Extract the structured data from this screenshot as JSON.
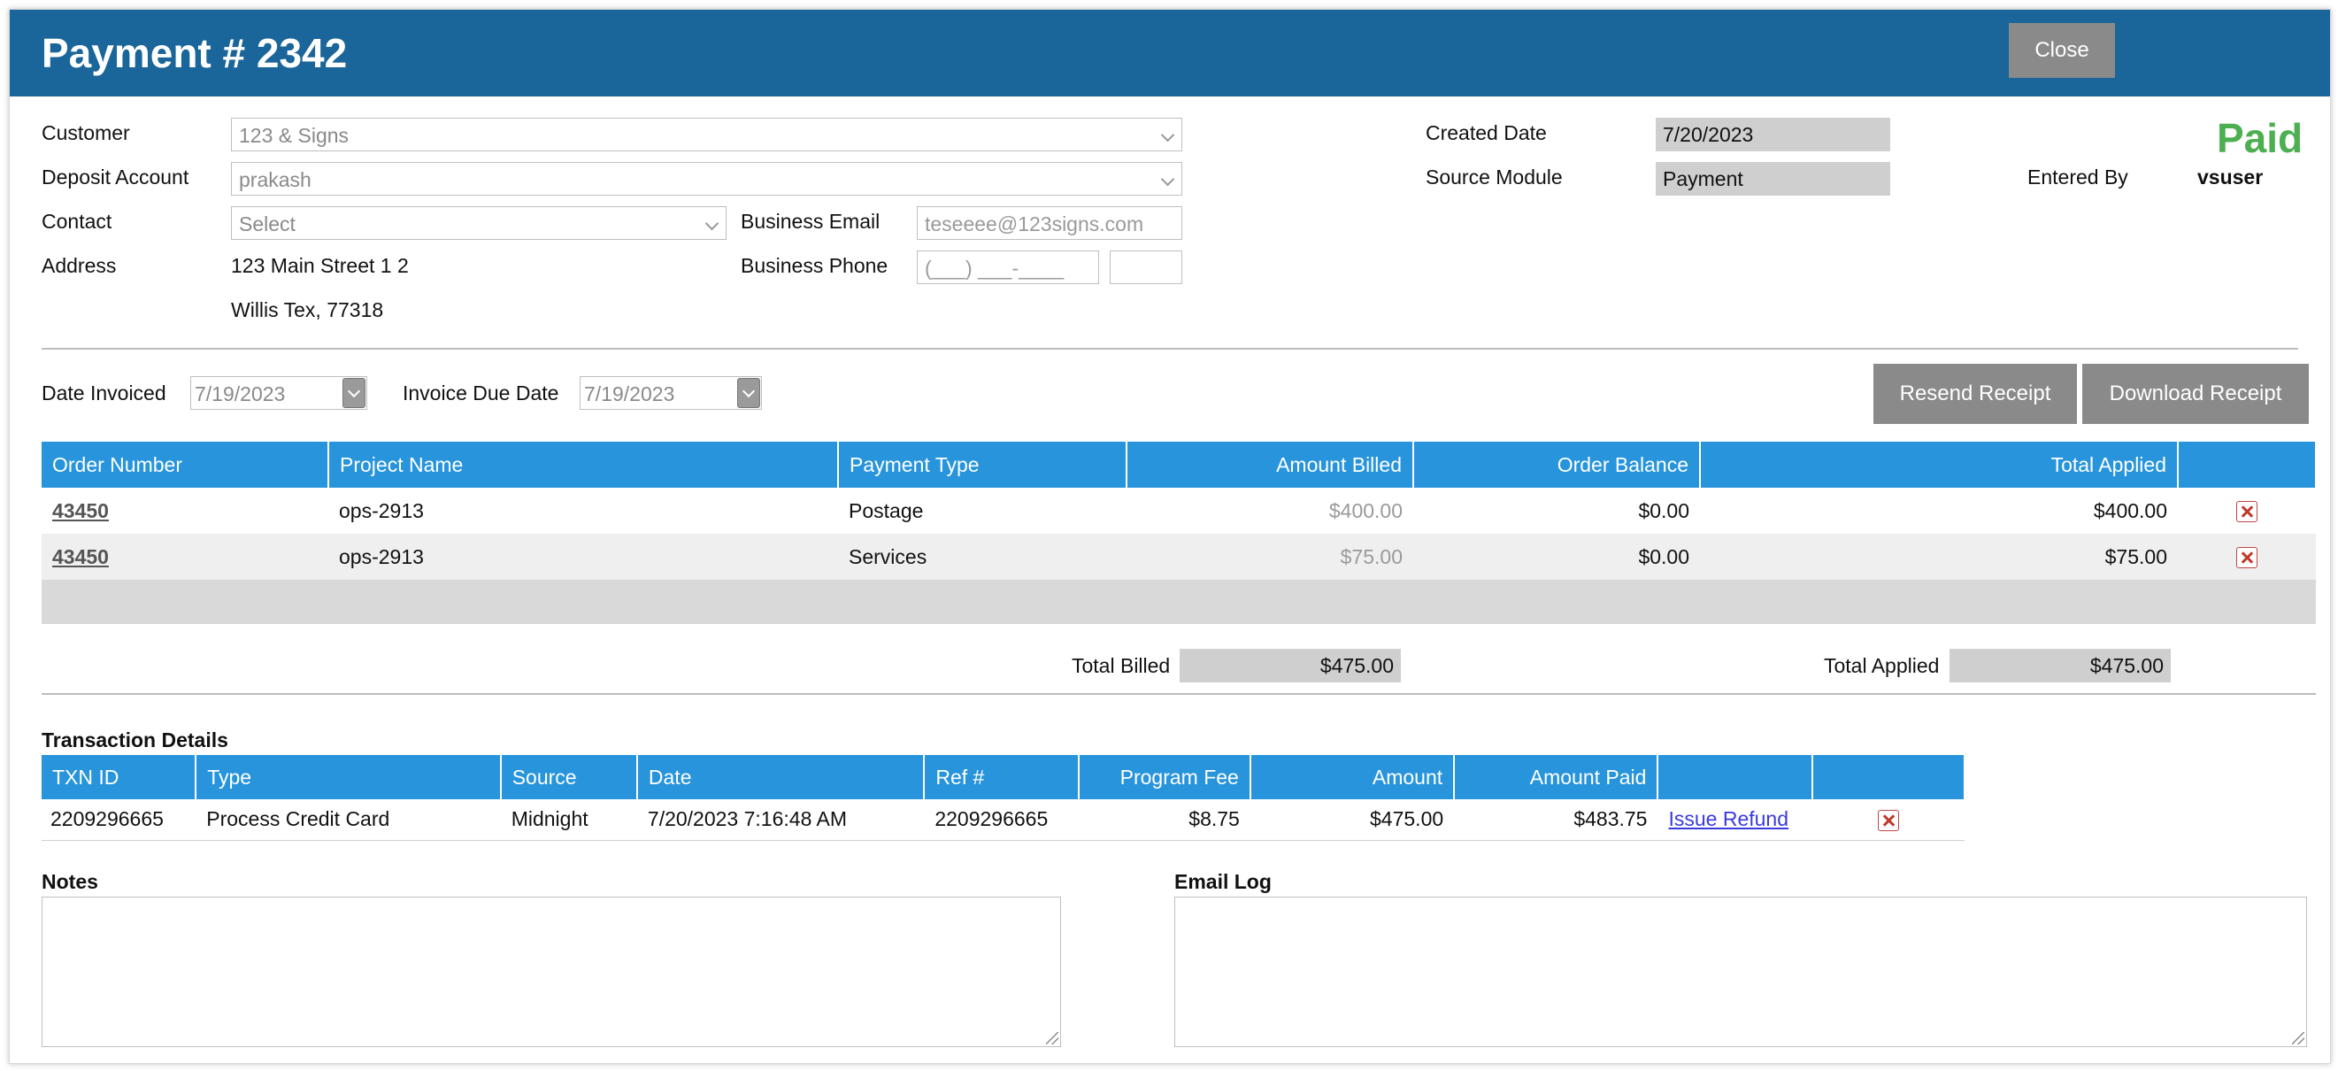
{
  "header": {
    "title": "Payment # 2342",
    "close_label": "Close"
  },
  "form": {
    "customer_label": "Customer",
    "customer_value": "123 & Signs",
    "deposit_label": "Deposit Account",
    "deposit_value": "prakash",
    "contact_label": "Contact",
    "contact_value": "Select",
    "address_label": "Address",
    "address_line1": "123 Main Street 1 2",
    "address_line2": "Willis Tex, 77318",
    "business_email_label": "Business Email",
    "business_email_placeholder": "teseeee@123signs.com",
    "business_phone_label": "Business Phone",
    "business_phone_placeholder": "(___) ___-____",
    "created_date_label": "Created Date",
    "created_date_value": "7/20/2023",
    "source_module_label": "Source Module",
    "source_module_value": "Payment",
    "entered_by_label": "Entered By",
    "entered_by_value": "vsuser",
    "status": "Paid"
  },
  "dates": {
    "date_invoiced_label": "Date Invoiced",
    "date_invoiced_value": "7/19/2023",
    "invoice_due_label": "Invoice Due Date",
    "invoice_due_value": "7/19/2023"
  },
  "actions": {
    "resend_receipt": "Resend Receipt",
    "download_receipt": "Download Receipt"
  },
  "orders": {
    "headers": [
      "Order Number",
      "Project Name",
      "Payment Type",
      "Amount Billed",
      "Order Balance",
      "Total Applied"
    ],
    "rows": [
      {
        "order": "43450",
        "project": "ops-2913",
        "type": "Postage",
        "billed": "$400.00",
        "balance": "$0.00",
        "applied": "$400.00"
      },
      {
        "order": "43450",
        "project": "ops-2913",
        "type": "Services",
        "billed": "$75.00",
        "balance": "$0.00",
        "applied": "$75.00"
      }
    ],
    "total_billed_label": "Total Billed",
    "total_billed_value": "$475.00",
    "total_applied_label": "Total Applied",
    "total_applied_value": "$475.00"
  },
  "transactions": {
    "section_title": "Transaction Details",
    "headers": [
      "TXN ID",
      "Type",
      "Source",
      "Date",
      "Ref #",
      "Program Fee",
      "Amount",
      "Amount Paid"
    ],
    "rows": [
      {
        "txn": "2209296665",
        "type": "Process Credit Card",
        "source": "Midnight",
        "date": "7/20/2023 7:16:48 AM",
        "ref": "2209296665",
        "fee": "$8.75",
        "amount": "$475.00",
        "paid": "$483.75",
        "refund_label": "Issue Refund"
      }
    ]
  },
  "notes": {
    "notes_label": "Notes",
    "email_log_label": "Email Log"
  },
  "colors": {
    "titlebar": "#1a6599",
    "table_header": "#2794dc",
    "paid": "#4caf50",
    "button_grey": "#8a8a8a"
  }
}
